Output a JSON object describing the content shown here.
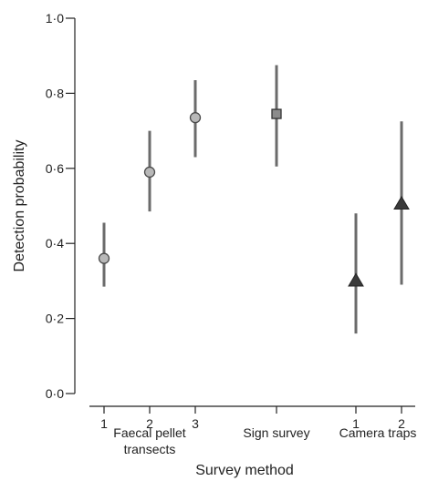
{
  "chart_data": {
    "type": "scatter",
    "xlabel": "Survey method",
    "ylabel": "Detection probability",
    "ylim": [
      0,
      1
    ],
    "yticks": [
      "0·0",
      "0·2",
      "0·4",
      "0·6",
      "0·8",
      "1·0"
    ],
    "grid": false,
    "groups": [
      {
        "label_lines": [
          "Faecal pellet",
          "transects"
        ],
        "marker": "circle",
        "color": "#b8b8b8",
        "points": [
          {
            "tick": "1",
            "value": 0.36,
            "lower": 0.285,
            "upper": 0.455
          },
          {
            "tick": "2",
            "value": 0.59,
            "lower": 0.485,
            "upper": 0.7
          },
          {
            "tick": "3",
            "value": 0.735,
            "lower": 0.63,
            "upper": 0.835
          }
        ]
      },
      {
        "label_lines": [
          "Sign survey"
        ],
        "marker": "square",
        "color": "#8c8c8c",
        "points": [
          {
            "tick": "",
            "value": 0.745,
            "lower": 0.605,
            "upper": 0.875
          }
        ]
      },
      {
        "label_lines": [
          "Camera traps"
        ],
        "marker": "triangle",
        "color": "#3a3a3a",
        "points": [
          {
            "tick": "1",
            "value": 0.3,
            "lower": 0.16,
            "upper": 0.48
          },
          {
            "tick": "2",
            "value": 0.505,
            "lower": 0.29,
            "upper": 0.725
          }
        ]
      }
    ]
  }
}
